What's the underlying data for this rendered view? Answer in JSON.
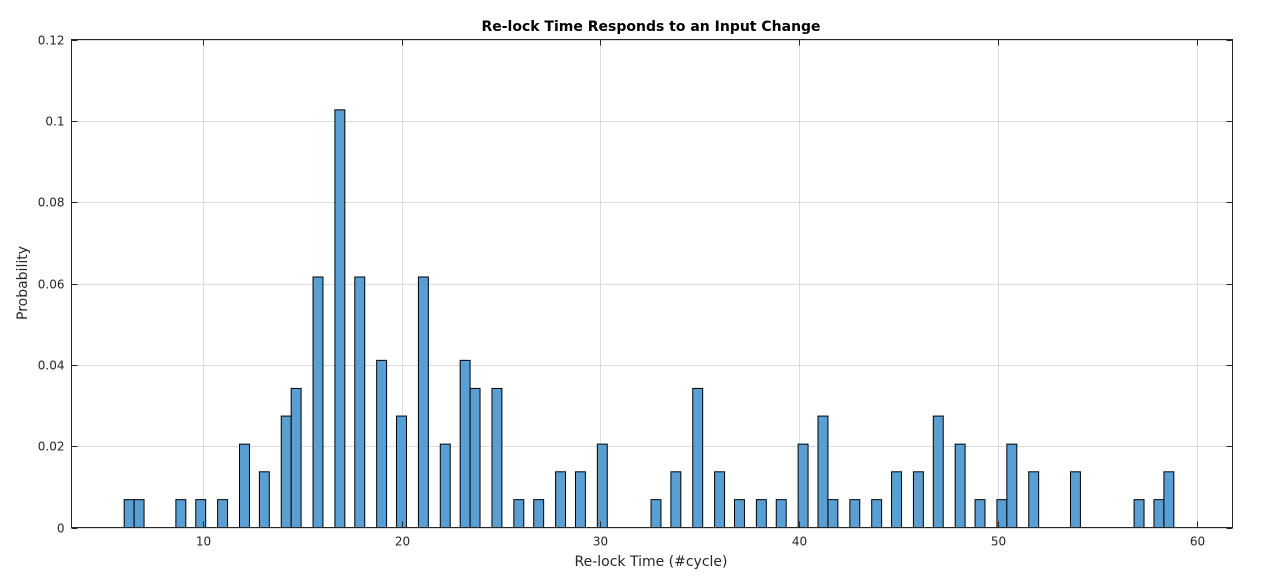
{
  "chart_data": {
    "type": "bar",
    "title": "Re-lock Time Responds to an Input Change",
    "xlabel": "Re-lock Time (#cycle)",
    "ylabel": "Probability",
    "xlim": [
      3.4,
      61.8
    ],
    "ylim": [
      0,
      0.12
    ],
    "xticks": [
      10,
      20,
      30,
      40,
      50,
      60
    ],
    "yticks": [
      0,
      0.02,
      0.04,
      0.06,
      0.08,
      0.1,
      0.12
    ],
    "ytick_labels": [
      "0",
      "0.02",
      "0.04",
      "0.06",
      "0.08",
      "0.1",
      "0.12"
    ],
    "grid": true,
    "bar_width": 0.5,
    "bar_color": "#5a9fd4",
    "x": [
      6.3,
      6.8,
      8.9,
      9.9,
      11,
      12.1,
      13.1,
      14.2,
      14.7,
      15.8,
      16.9,
      17.9,
      19,
      20,
      21.1,
      22.2,
      23.2,
      23.7,
      24.8,
      25.9,
      26.9,
      28,
      29,
      30.1,
      32.8,
      33.8,
      34.9,
      36,
      37,
      38.1,
      39.1,
      40.2,
      41.2,
      41.7,
      42.8,
      43.9,
      44.9,
      46,
      47,
      48.1,
      49.1,
      50.2,
      50.7,
      51.8,
      53.9,
      57.1,
      58.1,
      58.6
    ],
    "values": [
      0.00685,
      0.00685,
      0.00685,
      0.00685,
      0.00685,
      0.0205,
      0.0137,
      0.0274,
      0.0342,
      0.0616,
      0.1027,
      0.0616,
      0.0411,
      0.0274,
      0.0616,
      0.0205,
      0.0411,
      0.0342,
      0.0342,
      0.00685,
      0.00685,
      0.0137,
      0.0137,
      0.0205,
      0.00685,
      0.0137,
      0.0342,
      0.0137,
      0.00685,
      0.00685,
      0.00685,
      0.0205,
      0.0274,
      0.00685,
      0.00685,
      0.00685,
      0.0137,
      0.0137,
      0.0274,
      0.0205,
      0.00685,
      0.00685,
      0.0205,
      0.0137,
      0.0137,
      0.00685,
      0.00685,
      0.0137
    ]
  }
}
